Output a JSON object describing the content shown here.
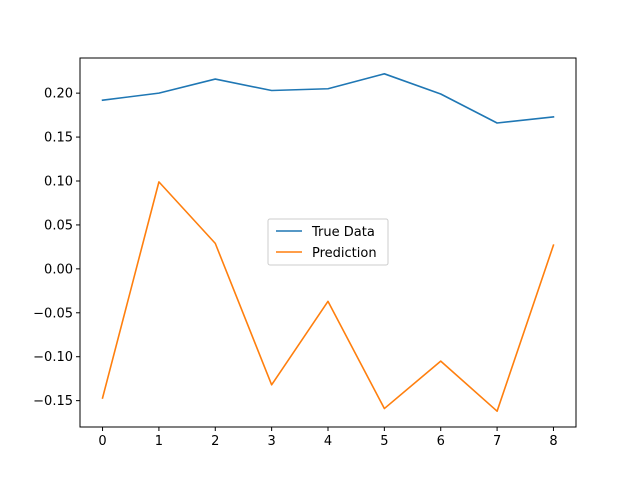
{
  "chart_data": {
    "type": "line",
    "x": [
      0,
      1,
      2,
      3,
      4,
      5,
      6,
      7,
      8
    ],
    "xlim": [
      -0.4,
      8.4
    ],
    "ylim": [
      -0.18,
      0.24
    ],
    "xticks": [
      0,
      1,
      2,
      3,
      4,
      5,
      6,
      7,
      8
    ],
    "yticks": [
      -0.15,
      -0.1,
      -0.05,
      0.0,
      0.05,
      0.1,
      0.15,
      0.2
    ],
    "xtick_labels": [
      "0",
      "1",
      "2",
      "3",
      "4",
      "5",
      "6",
      "7",
      "8"
    ],
    "ytick_labels": [
      "−0.15",
      "−0.10",
      "−0.05",
      "0.00",
      "0.05",
      "0.10",
      "0.15",
      "0.20"
    ],
    "grid": false,
    "legend_position": "center",
    "series": [
      {
        "name": "True Data",
        "color": "#1f77b4",
        "values": [
          0.192,
          0.2,
          0.216,
          0.203,
          0.205,
          0.222,
          0.199,
          0.166,
          0.173
        ]
      },
      {
        "name": "Prediction",
        "color": "#ff7f0e",
        "values": [
          -0.147,
          0.099,
          0.029,
          -0.132,
          -0.037,
          -0.159,
          -0.105,
          -0.162,
          0.027
        ]
      }
    ]
  }
}
